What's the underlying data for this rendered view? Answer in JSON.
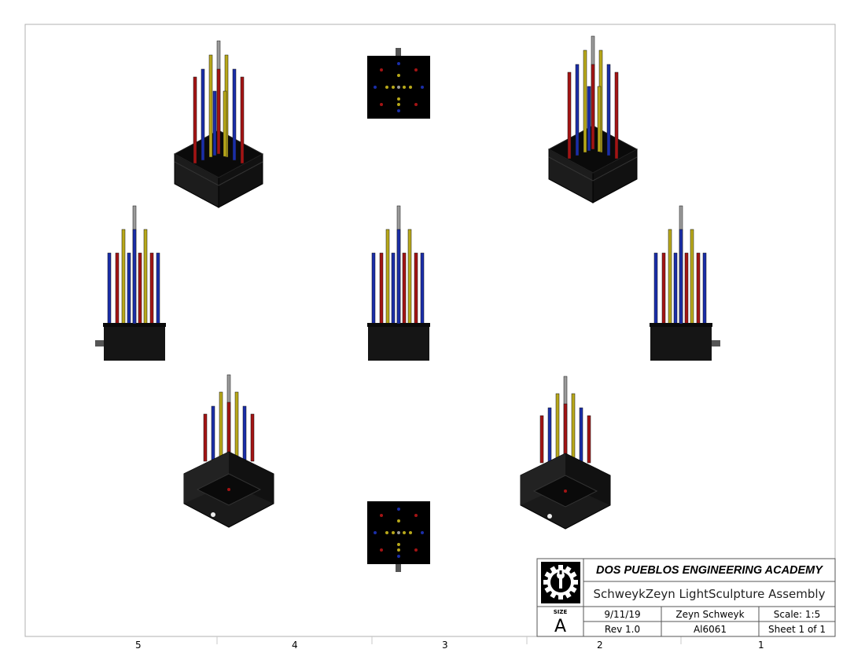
{
  "title_block": {
    "school": "DOS PUEBLOS ENGINEERING ACADEMY",
    "title": "SchweykZeyn LightSculpture Assembly",
    "size_label": "SIZE",
    "size_value": "A",
    "date": "9/11/19",
    "author": "Zeyn Schweyk",
    "scale": "Scale: 1:5",
    "revision": "Rev 1.0",
    "material": "Al6061",
    "sheet": "Sheet 1 of 1"
  },
  "zones": [
    "5",
    "4",
    "3",
    "2",
    "1"
  ],
  "colors": {
    "rod_red": "#a31414",
    "rod_blue": "#1a2ea8",
    "rod_yellow": "#b8a81a",
    "rod_gray": "#9a9a9a",
    "base": "#151515"
  },
  "views": [
    "isometric-top-left",
    "top-view",
    "isometric-top-right",
    "left-view",
    "front-view",
    "right-view",
    "isometric-bottom-left",
    "bottom-view",
    "isometric-bottom-right"
  ]
}
